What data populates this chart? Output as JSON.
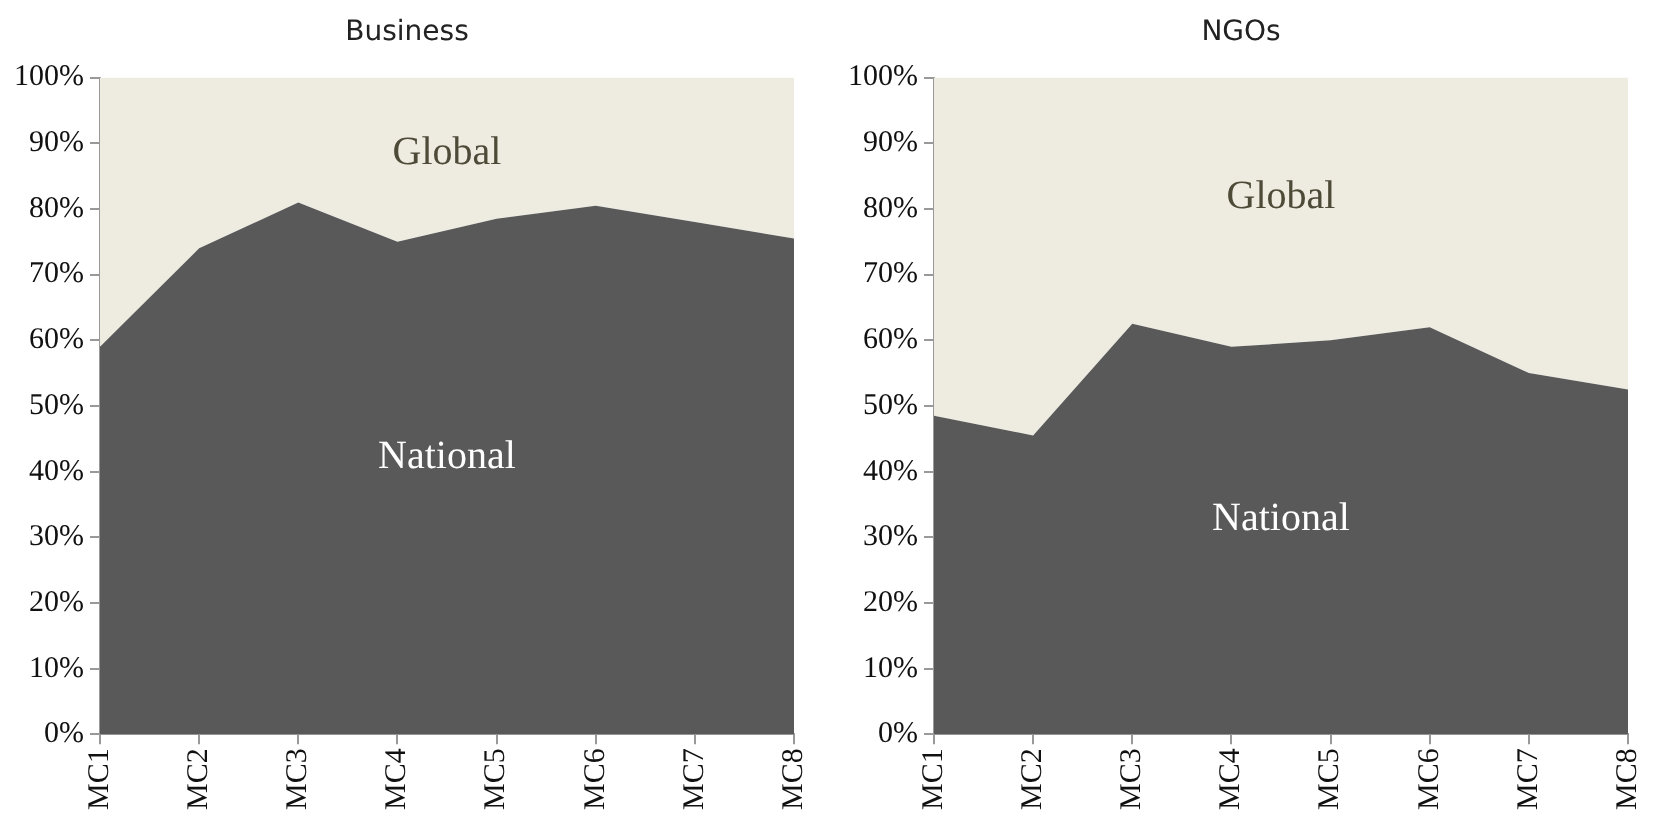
{
  "chart_data": [
    {
      "type": "area",
      "title": "Business",
      "categories": [
        "MC1",
        "MC2",
        "MC3",
        "MC4",
        "MC5",
        "MC6",
        "MC7",
        "MC8"
      ],
      "stacked": true,
      "grid": false,
      "legend": false,
      "ylim": [
        0,
        100
      ],
      "yticks": [
        {
          "value": 0,
          "label": "0%"
        },
        {
          "value": 10,
          "label": "10%"
        },
        {
          "value": 20,
          "label": "20%"
        },
        {
          "value": 30,
          "label": "30%"
        },
        {
          "value": 40,
          "label": "40%"
        },
        {
          "value": 50,
          "label": "50%"
        },
        {
          "value": 60,
          "label": "60%"
        },
        {
          "value": 70,
          "label": "70%"
        },
        {
          "value": 80,
          "label": "80%"
        },
        {
          "value": 90,
          "label": "90%"
        },
        {
          "value": 100,
          "label": "100%"
        }
      ],
      "series": [
        {
          "name": "National",
          "color": "#595959",
          "values": [
            59,
            74,
            81,
            75,
            78.5,
            80.5,
            78,
            75.5
          ]
        },
        {
          "name": "Global",
          "color": "#eeebe0",
          "values": [
            41,
            26,
            19,
            25,
            21.5,
            19.5,
            22,
            24.5
          ]
        }
      ]
    },
    {
      "type": "area",
      "title": "NGOs",
      "categories": [
        "MC1",
        "MC2",
        "MC3",
        "MC4",
        "MC5",
        "MC6",
        "MC7",
        "MC8"
      ],
      "stacked": true,
      "grid": false,
      "legend": false,
      "ylim": [
        0,
        100
      ],
      "yticks": [
        {
          "value": 0,
          "label": "0%"
        },
        {
          "value": 10,
          "label": "10%"
        },
        {
          "value": 20,
          "label": "20%"
        },
        {
          "value": 30,
          "label": "30%"
        },
        {
          "value": 40,
          "label": "40%"
        },
        {
          "value": 50,
          "label": "50%"
        },
        {
          "value": 60,
          "label": "60%"
        },
        {
          "value": 70,
          "label": "70%"
        },
        {
          "value": 80,
          "label": "80%"
        },
        {
          "value": 90,
          "label": "90%"
        },
        {
          "value": 100,
          "label": "100%"
        }
      ],
      "series": [
        {
          "name": "National",
          "color": "#595959",
          "values": [
            48.5,
            45.5,
            62.5,
            59,
            60,
            62,
            55,
            52.5
          ]
        },
        {
          "name": "Global",
          "color": "#eeebe0",
          "values": [
            51.5,
            54.5,
            37.5,
            41,
            40,
            38,
            45,
            47.5
          ]
        }
      ]
    }
  ]
}
